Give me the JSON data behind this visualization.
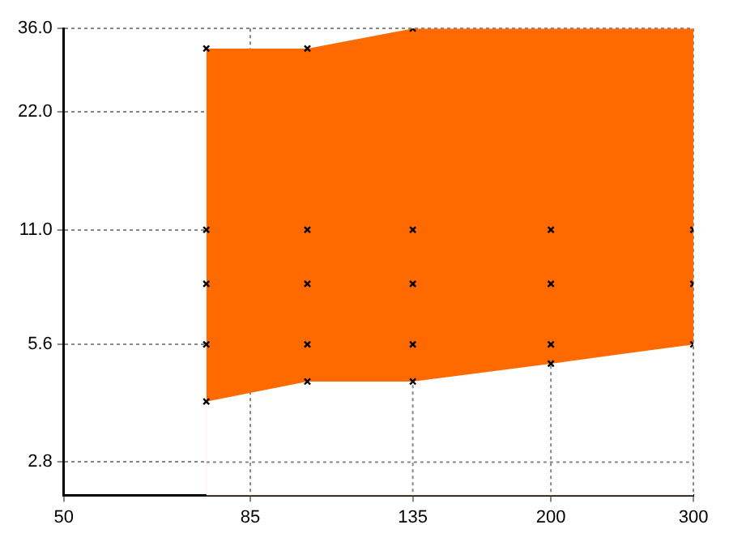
{
  "chart_data": {
    "type": "area",
    "log": "xy",
    "xlim": [
      50,
      300
    ],
    "xticks": [
      50,
      85,
      135,
      200,
      300
    ],
    "ylim": [
      2.3,
      36
    ],
    "yticks": [
      {
        "value": 2.8,
        "label": "2.8"
      },
      {
        "value": 5.6,
        "label": "5.6"
      },
      {
        "value": 11,
        "label": "11.0"
      },
      {
        "value": 22,
        "label": "22.0"
      },
      {
        "value": 36,
        "label": "36.0"
      }
    ],
    "grid": true,
    "legend": false,
    "series": [
      {
        "x": [
          75,
          100,
          135,
          200,
          300
        ],
        "values": [
          32,
          32,
          36,
          36,
          36
        ],
        "color": "#ff6a00"
      },
      {
        "x": [
          75,
          100,
          135,
          200,
          300
        ],
        "values": [
          4.0,
          4.5,
          4.5,
          5.0,
          5.6
        ],
        "color": "#ffffff"
      },
      {
        "type": "scatter",
        "marker": "cross",
        "color": "#000000",
        "x": [
          75,
          75,
          75,
          75,
          75,
          100,
          100,
          100,
          100,
          100,
          135,
          135,
          135,
          135,
          135,
          200,
          200,
          200,
          200,
          300,
          300,
          300
        ],
        "values": [
          32,
          11,
          8,
          5.6,
          4.0,
          32,
          11,
          8,
          5.6,
          4.5,
          36,
          11,
          8,
          5.6,
          4.5,
          11,
          8,
          5.6,
          5.0,
          11,
          8,
          5.6
        ]
      }
    ]
  }
}
